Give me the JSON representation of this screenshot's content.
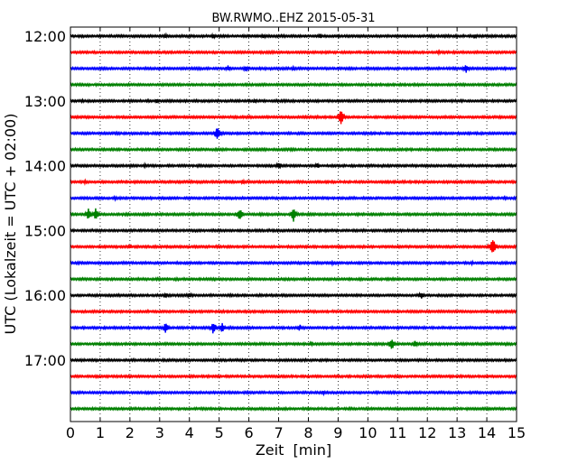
{
  "chart_data": {
    "type": "line",
    "title": "BW.RWMO..EHZ 2015-05-31",
    "xlabel": "Zeit  [min]",
    "ylabel": "UTC (Lokalzeit = UTC + 02:00)",
    "xlim": [
      0,
      15
    ],
    "x_ticks": [
      "0",
      "1",
      "2",
      "3",
      "4",
      "5",
      "6",
      "7",
      "8",
      "9",
      "10",
      "11",
      "12",
      "13",
      "14",
      "15"
    ],
    "y_tick_labels": [
      "12:00",
      "13:00",
      "14:00",
      "15:00",
      "16:00",
      "17:00"
    ],
    "grid": "vertical dotted lines at every minute",
    "trace_interval_minutes": 15,
    "trace_color_cycle": [
      "#000000",
      "#ff0000",
      "#0000ff",
      "#008000"
    ],
    "traces": [
      {
        "start": "12:00",
        "color": "#000000",
        "events": [
          {
            "minute": 3.2,
            "amp": 0.22
          },
          {
            "minute": 4.8,
            "amp": 0.2
          },
          {
            "minute": 6.5,
            "amp": 0.18
          },
          {
            "minute": 8.4,
            "amp": 0.22
          },
          {
            "minute": 13.6,
            "amp": 0.18
          }
        ]
      },
      {
        "start": "12:15",
        "color": "#ff0000",
        "events": [
          {
            "minute": 12.4,
            "amp": 0.15
          }
        ]
      },
      {
        "start": "12:30",
        "color": "#0000ff",
        "events": [
          {
            "minute": 5.3,
            "amp": 0.28
          },
          {
            "minute": 5.9,
            "amp": 0.25
          },
          {
            "minute": 7.5,
            "amp": 0.18
          },
          {
            "minute": 13.3,
            "amp": 0.45
          }
        ]
      },
      {
        "start": "12:45",
        "color": "#008000",
        "events": []
      },
      {
        "start": "13:00",
        "color": "#000000",
        "events": [
          {
            "minute": 0.4,
            "amp": 0.15
          },
          {
            "minute": 2.9,
            "amp": 0.2
          },
          {
            "minute": 6.2,
            "amp": 0.18
          }
        ]
      },
      {
        "start": "13:15",
        "color": "#ff0000",
        "events": [
          {
            "minute": 9.1,
            "amp": 0.7
          }
        ]
      },
      {
        "start": "13:30",
        "color": "#0000ff",
        "events": [
          {
            "minute": 4.95,
            "amp": 0.65
          }
        ]
      },
      {
        "start": "13:45",
        "color": "#008000",
        "events": []
      },
      {
        "start": "14:00",
        "color": "#000000",
        "events": [
          {
            "minute": 2.5,
            "amp": 0.15
          },
          {
            "minute": 7.0,
            "amp": 0.3
          },
          {
            "minute": 8.3,
            "amp": 0.25
          }
        ]
      },
      {
        "start": "14:15",
        "color": "#ff0000",
        "events": [
          {
            "minute": 0.5,
            "amp": 0.15
          },
          {
            "minute": 5.8,
            "amp": 0.2
          }
        ]
      },
      {
        "start": "14:30",
        "color": "#0000ff",
        "events": [
          {
            "minute": 1.5,
            "amp": 0.18
          },
          {
            "minute": 14.6,
            "amp": 0.15
          }
        ]
      },
      {
        "start": "14:45",
        "color": "#008000",
        "events": [
          {
            "minute": 0.6,
            "amp": 0.5
          },
          {
            "minute": 0.85,
            "amp": 0.55
          },
          {
            "minute": 5.7,
            "amp": 0.6
          },
          {
            "minute": 7.5,
            "amp": 0.65
          }
        ]
      },
      {
        "start": "15:00",
        "color": "#000000",
        "events": []
      },
      {
        "start": "15:15",
        "color": "#ff0000",
        "events": [
          {
            "minute": 2.0,
            "amp": 0.18
          },
          {
            "minute": 14.2,
            "amp": 0.85
          }
        ]
      },
      {
        "start": "15:30",
        "color": "#0000ff",
        "events": [
          {
            "minute": 8.8,
            "amp": 0.15
          },
          {
            "minute": 13.5,
            "amp": 0.15
          }
        ]
      },
      {
        "start": "15:45",
        "color": "#008000",
        "events": []
      },
      {
        "start": "16:00",
        "color": "#000000",
        "events": [
          {
            "minute": 3.2,
            "amp": 0.2
          },
          {
            "minute": 4.0,
            "amp": 0.2
          },
          {
            "minute": 11.8,
            "amp": 0.3
          }
        ]
      },
      {
        "start": "16:15",
        "color": "#ff0000",
        "events": []
      },
      {
        "start": "16:30",
        "color": "#0000ff",
        "events": [
          {
            "minute": 3.2,
            "amp": 0.5
          },
          {
            "minute": 4.8,
            "amp": 0.55
          },
          {
            "minute": 5.1,
            "amp": 0.45
          },
          {
            "minute": 7.7,
            "amp": 0.3
          }
        ]
      },
      {
        "start": "16:45",
        "color": "#008000",
        "events": [
          {
            "minute": 8.1,
            "amp": 0.2
          },
          {
            "minute": 10.8,
            "amp": 0.55
          },
          {
            "minute": 11.6,
            "amp": 0.3
          }
        ]
      },
      {
        "start": "17:00",
        "color": "#000000",
        "events": [
          {
            "minute": 7.9,
            "amp": 0.15
          }
        ]
      },
      {
        "start": "17:15",
        "color": "#ff0000",
        "events": []
      },
      {
        "start": "17:30",
        "color": "#0000ff",
        "events": [
          {
            "minute": 8.5,
            "amp": 0.18
          }
        ]
      },
      {
        "start": "17:45",
        "color": "#008000",
        "events": []
      }
    ]
  }
}
